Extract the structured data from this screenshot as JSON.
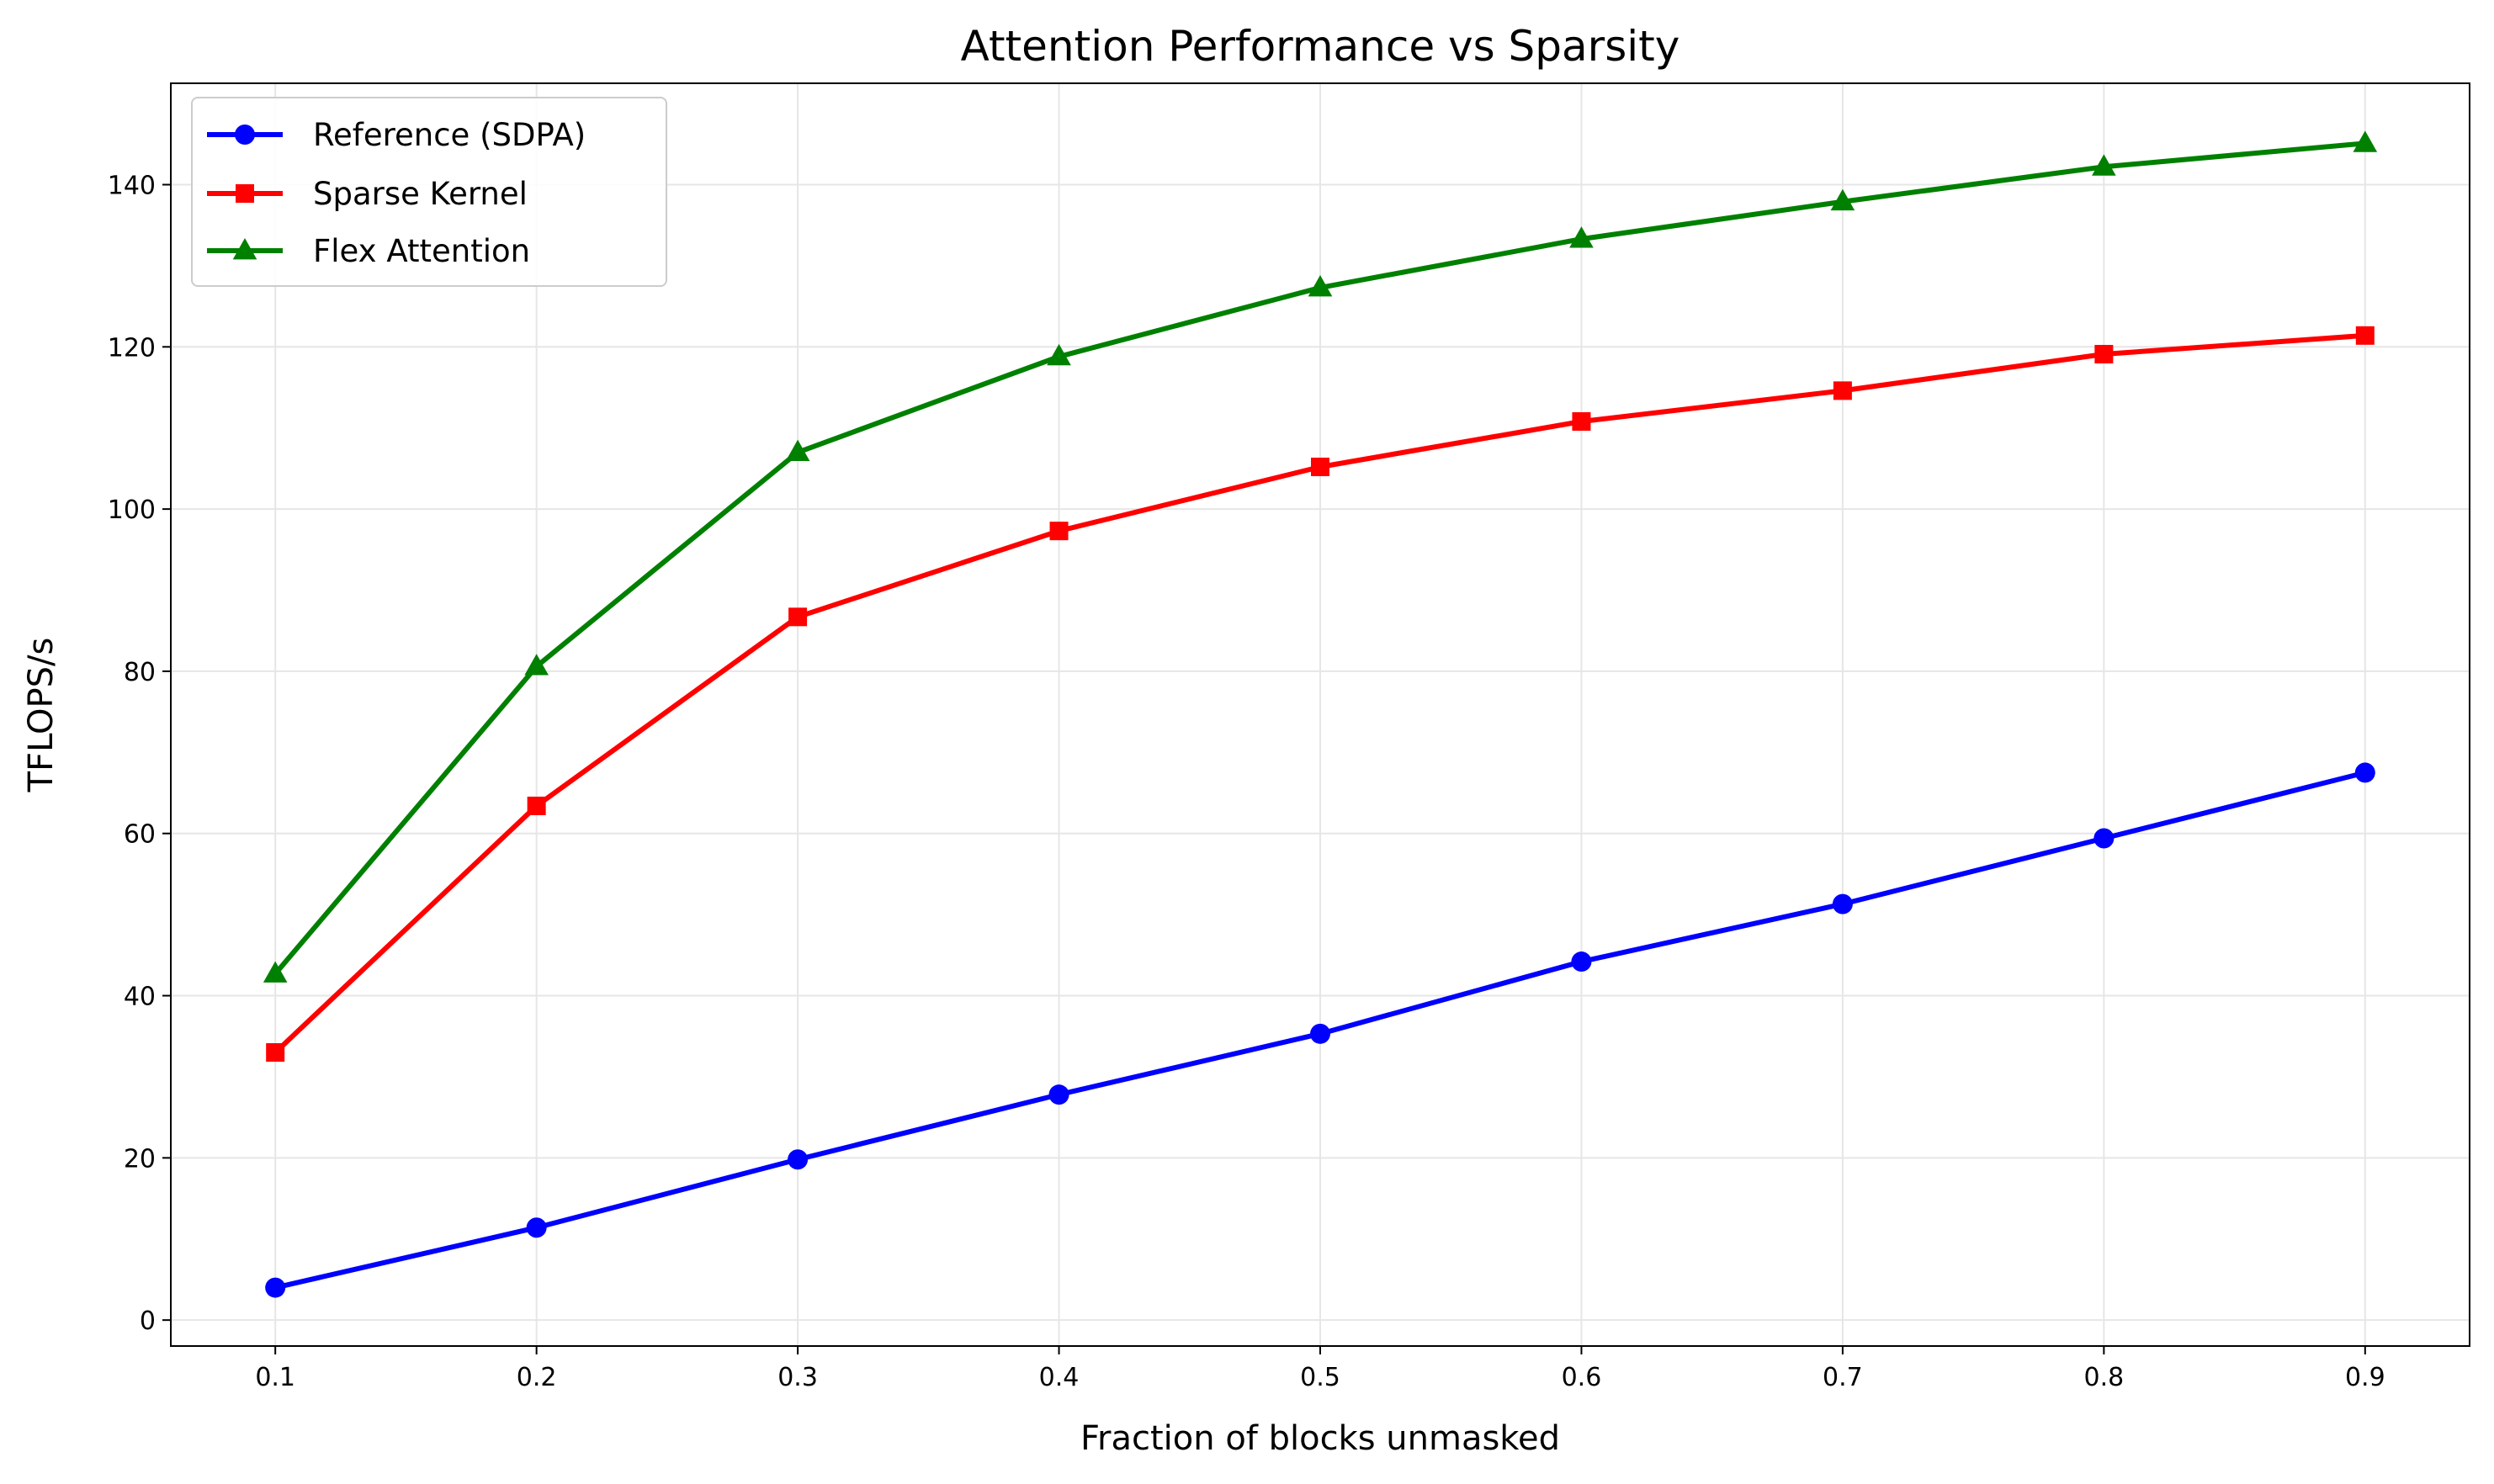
{
  "chart_data": {
    "type": "line",
    "title": "Attention Performance vs Sparsity",
    "xlabel": "Fraction of blocks unmasked",
    "ylabel": "TFLOPS/s",
    "x": [
      0.1,
      0.2,
      0.3,
      0.4,
      0.5,
      0.6,
      0.7,
      0.8,
      0.9
    ],
    "xlim": [
      0.06,
      0.94
    ],
    "ylim": [
      -3.2,
      152.5
    ],
    "xticks": [
      0.1,
      0.2,
      0.3,
      0.4,
      0.5,
      0.6,
      0.7,
      0.8,
      0.9
    ],
    "xtick_labels": [
      "0.1",
      "0.2",
      "0.3",
      "0.4",
      "0.5",
      "0.6",
      "0.7",
      "0.8",
      "0.9"
    ],
    "yticks": [
      0,
      20,
      40,
      60,
      80,
      100,
      120,
      140
    ],
    "ytick_labels": [
      "0",
      "20",
      "40",
      "60",
      "80",
      "100",
      "120",
      "140"
    ],
    "grid": true,
    "legend_position": "top-left",
    "series": [
      {
        "name": "Reference (SDPA)",
        "color": "#0000ff",
        "marker": "circle",
        "values": [
          4.0,
          11.4,
          19.8,
          27.8,
          35.3,
          44.2,
          51.3,
          59.4,
          67.5
        ]
      },
      {
        "name": "Sparse Kernel",
        "color": "#ff0000",
        "marker": "square",
        "values": [
          33.0,
          63.4,
          86.7,
          97.3,
          105.2,
          110.8,
          114.6,
          119.1,
          121.4
        ]
      },
      {
        "name": "Flex Attention",
        "color": "#008000",
        "marker": "triangle",
        "values": [
          42.7,
          80.6,
          107.0,
          118.8,
          127.3,
          133.3,
          137.9,
          142.2,
          145.1
        ]
      }
    ]
  }
}
